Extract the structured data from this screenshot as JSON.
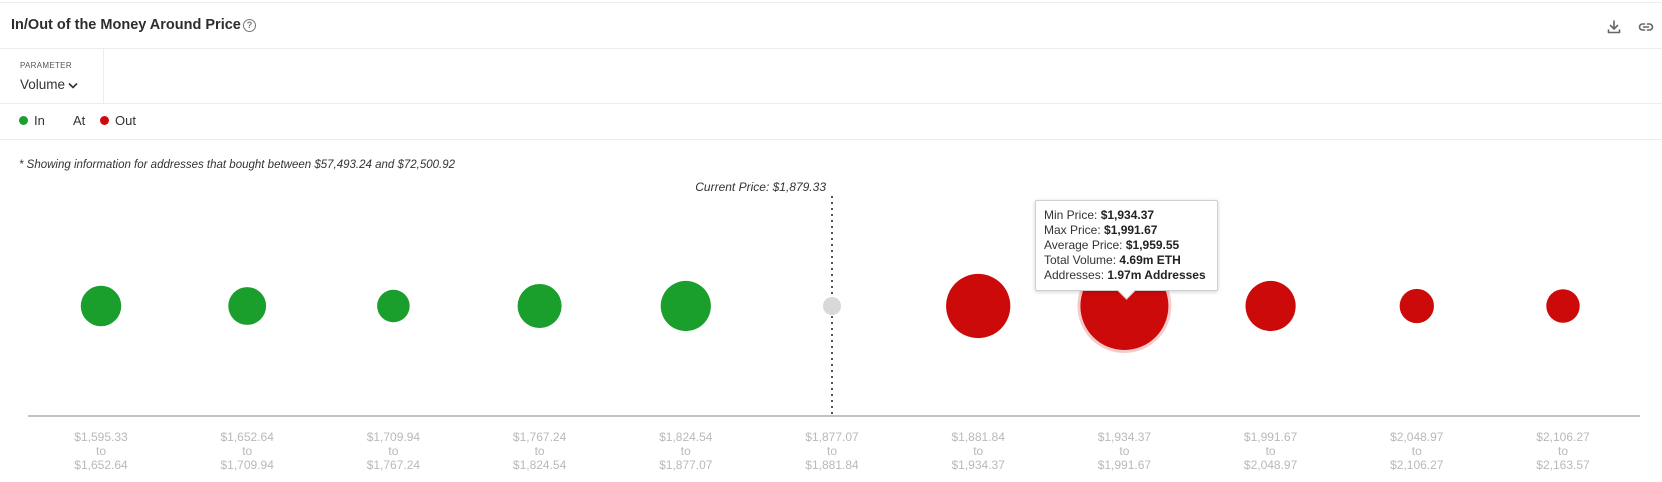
{
  "header": {
    "title": "In/Out of the Money Around Price",
    "help_icon": "question-circle-icon",
    "download_icon": "download-icon",
    "link_icon": "link-icon"
  },
  "parameter": {
    "label": "PARAMETER",
    "value": "Volume"
  },
  "legend": {
    "items": [
      {
        "label": "In",
        "color": "#1a9e2c"
      },
      {
        "label": "At",
        "color": ""
      },
      {
        "label": "Out",
        "color": "#cc0a0a"
      }
    ]
  },
  "note": "* Showing information for addresses that bought between $57,493.24 and $72,500.92",
  "current_price_label": "Current Price: $1,879.33",
  "tooltip": {
    "min_label": "Min Price:",
    "min_value": "$1,934.37",
    "max_label": "Max Price:",
    "max_value": "$1,991.67",
    "avg_label": "Average Price:",
    "avg_value": "$1,959.55",
    "vol_label": "Total Volume:",
    "vol_value": "4.69m ETH",
    "addr_label": "Addresses:",
    "addr_value": "1.97m Addresses"
  },
  "chart_data": {
    "type": "scatter",
    "title": "In/Out of the Money Around Price",
    "x_connector": "to",
    "categories": [
      {
        "from": "$1,595.33",
        "to": "$1,652.64",
        "status": "in"
      },
      {
        "from": "$1,652.64",
        "to": "$1,709.94",
        "status": "in"
      },
      {
        "from": "$1,709.94",
        "to": "$1,767.24",
        "status": "in"
      },
      {
        "from": "$1,767.24",
        "to": "$1,824.54",
        "status": "in"
      },
      {
        "from": "$1,824.54",
        "to": "$1,877.07",
        "status": "in"
      },
      {
        "from": "$1,877.07",
        "to": "$1,881.84",
        "status": "at"
      },
      {
        "from": "$1,881.84",
        "to": "$1,934.37",
        "status": "out"
      },
      {
        "from": "$1,934.37",
        "to": "$1,991.67",
        "status": "out"
      },
      {
        "from": "$1,991.67",
        "to": "$2,048.97",
        "status": "out"
      },
      {
        "from": "$2,048.97",
        "to": "$2,106.27",
        "status": "out"
      },
      {
        "from": "$2,106.27",
        "to": "$2,163.57",
        "status": "out"
      }
    ],
    "relative_volume": [
      0.46,
      0.43,
      0.37,
      0.5,
      0.57,
      0.08,
      0.73,
      1.0,
      0.57,
      0.39,
      0.38
    ],
    "highlighted_index": 7,
    "current_price": 1879.33,
    "colors": {
      "in": "#1a9e2c",
      "at": "#d8d8d8",
      "out": "#cc0a0a"
    }
  }
}
